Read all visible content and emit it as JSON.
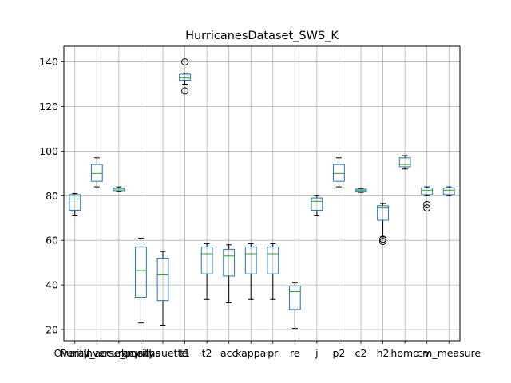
{
  "chart_data": {
    "type": "box",
    "title": "HurricanesDataset_SWS_K",
    "xlabel": "",
    "ylabel": "",
    "ylim": [
      15,
      147
    ],
    "yticks": [
      20,
      40,
      60,
      80,
      100,
      120,
      140
    ],
    "grid": true,
    "categories": [
      "Purity",
      "Overall_accuracy",
      "Inverse_purity",
      "kmeans",
      "silhouette",
      "t1",
      "t2",
      "acc",
      "kappa",
      "pr",
      "re",
      "j",
      "p2",
      "c2",
      "h2",
      "homo",
      "v",
      "cm_measure"
    ],
    "boxes": [
      {
        "label": "Purity",
        "whislo": 71,
        "q1": 73.5,
        "med": 78.5,
        "q3": 80.5,
        "whishi": 81,
        "fliers": []
      },
      {
        "label": "Overall_accuracy",
        "whislo": 84,
        "q1": 86.5,
        "med": 90,
        "q3": 94,
        "whishi": 97,
        "fliers": []
      },
      {
        "label": "Inverse_purity",
        "whislo": 82,
        "q1": 82.3,
        "med": 83,
        "q3": 83.5,
        "whishi": 84,
        "fliers": []
      },
      {
        "label": "kmeans",
        "whislo": 23,
        "q1": 34.5,
        "med": 46.5,
        "q3": 57,
        "whishi": 61,
        "fliers": []
      },
      {
        "label": "silhouette",
        "whislo": 22,
        "q1": 33,
        "med": 44.5,
        "q3": 52,
        "whishi": 55,
        "fliers": []
      },
      {
        "label": "t1",
        "whislo": 130,
        "q1": 131.8,
        "med": 132.8,
        "q3": 134.5,
        "whishi": 135,
        "fliers": [
          140,
          127
        ]
      },
      {
        "label": "t2",
        "whislo": 33.5,
        "q1": 45,
        "med": 54,
        "q3": 57,
        "whishi": 58.5,
        "fliers": []
      },
      {
        "label": "acc",
        "whislo": 32,
        "q1": 44,
        "med": 53,
        "q3": 56,
        "whishi": 58,
        "fliers": []
      },
      {
        "label": "kappa",
        "whislo": 33.5,
        "q1": 45,
        "med": 54,
        "q3": 57,
        "whishi": 58.5,
        "fliers": []
      },
      {
        "label": "pr",
        "whislo": 33.5,
        "q1": 45,
        "med": 54,
        "q3": 57,
        "whishi": 58.5,
        "fliers": []
      },
      {
        "label": "re",
        "whislo": 20.5,
        "q1": 29,
        "med": 37,
        "q3": 39.5,
        "whishi": 41,
        "fliers": []
      },
      {
        "label": "j",
        "whislo": 71,
        "q1": 73.5,
        "med": 77.5,
        "q3": 79,
        "whishi": 80,
        "fliers": []
      },
      {
        "label": "p2",
        "whislo": 84,
        "q1": 86.5,
        "med": 90,
        "q3": 94,
        "whishi": 97,
        "fliers": []
      },
      {
        "label": "c2",
        "whislo": 81.5,
        "q1": 82,
        "med": 82.5,
        "q3": 83,
        "whishi": 83.3,
        "fliers": []
      },
      {
        "label": "h2",
        "whislo": 61.5,
        "q1": 69,
        "med": 74.5,
        "q3": 75.5,
        "whishi": 76.5,
        "fliers": [
          59.5,
          60.5
        ]
      },
      {
        "label": "homo",
        "whislo": 92,
        "q1": 93,
        "med": 94,
        "q3": 97,
        "whishi": 98,
        "fliers": []
      },
      {
        "label": "v",
        "whislo": 80,
        "q1": 80.5,
        "med": 82.5,
        "q3": 83.5,
        "whishi": 84,
        "fliers": [
          76,
          74.5
        ]
      },
      {
        "label": "cm_measure",
        "whislo": 80,
        "q1": 80.5,
        "med": 82.5,
        "q3": 83.5,
        "whishi": 84,
        "fliers": []
      }
    ],
    "colors": {
      "box": "#1f77b4",
      "median": "#2ca02c",
      "whisker": "#000000",
      "grid": "#b0b0b0",
      "flier": "#000000"
    }
  }
}
